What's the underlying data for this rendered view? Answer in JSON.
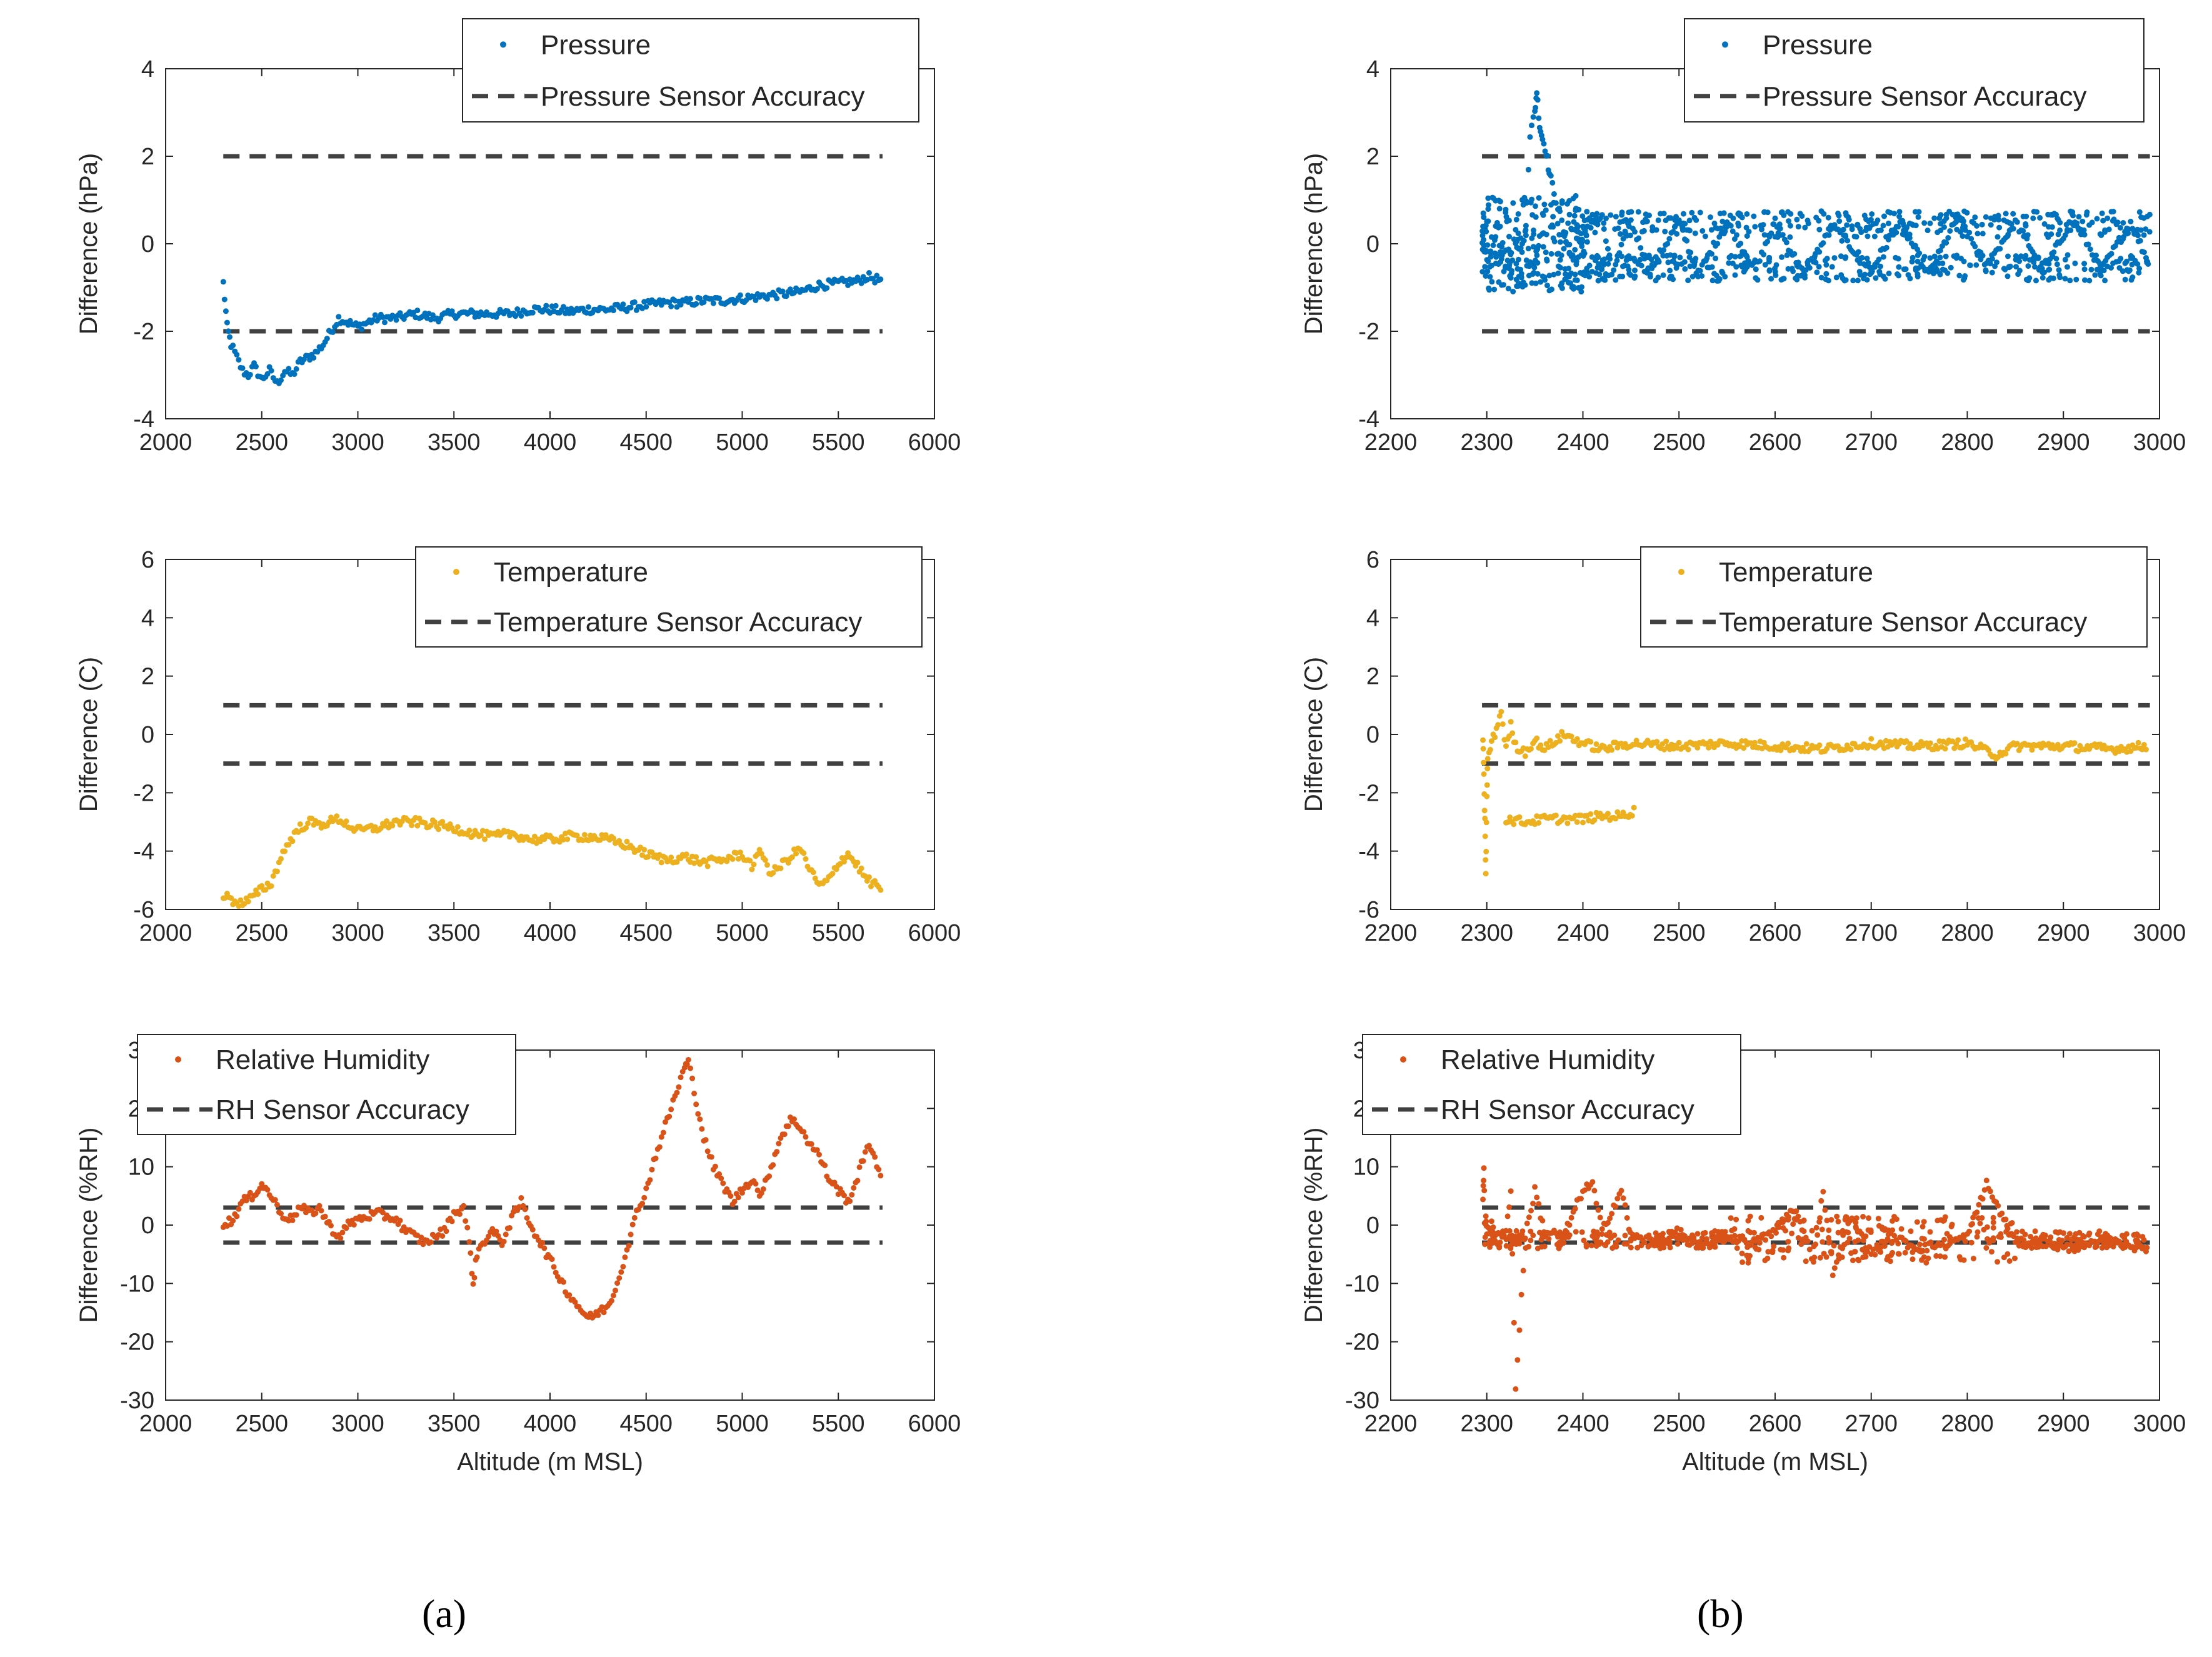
{
  "panel_labels": [
    "(a)",
    "(b)"
  ],
  "colors": {
    "pressure": "#0072BD",
    "temperature": "#EDB120",
    "humidity": "#D95319",
    "accuracy": "#404040"
  },
  "chart_data": [
    {
      "id": "a-pressure",
      "type": "scatter",
      "ylabel": "Difference (hPa)",
      "xlabel": "",
      "xlim": [
        2000,
        6000
      ],
      "xticks": [
        2000,
        2500,
        3000,
        3500,
        4000,
        4500,
        5000,
        5500,
        6000
      ],
      "ylim": [
        -4,
        4
      ],
      "yticks": [
        -4,
        -2,
        0,
        2,
        4
      ],
      "legend": {
        "placement": "top-center",
        "entries": [
          "Pressure",
          "Pressure Sensor Accuracy"
        ]
      },
      "accuracy_lines": [
        2,
        -2
      ],
      "line_x": [
        2300,
        5730
      ],
      "color": "pressure",
      "series_points": [
        [
          2300,
          -0.9
        ],
        [
          2320,
          -1.9
        ],
        [
          2340,
          -2.3
        ],
        [
          2370,
          -2.6
        ],
        [
          2400,
          -2.9
        ],
        [
          2430,
          -3.0
        ],
        [
          2460,
          -2.8
        ],
        [
          2500,
          -3.1
        ],
        [
          2540,
          -2.9
        ],
        [
          2580,
          -3.2
        ],
        [
          2620,
          -2.9
        ],
        [
          2660,
          -3.0
        ],
        [
          2700,
          -2.7
        ],
        [
          2740,
          -2.6
        ],
        [
          2780,
          -2.5
        ],
        [
          2820,
          -2.3
        ],
        [
          2860,
          -2.0
        ],
        [
          2900,
          -1.7
        ],
        [
          2950,
          -1.8
        ],
        [
          3000,
          -1.9
        ],
        [
          3100,
          -1.7
        ],
        [
          3200,
          -1.7
        ],
        [
          3300,
          -1.6
        ],
        [
          3400,
          -1.7
        ],
        [
          3500,
          -1.6
        ],
        [
          3600,
          -1.6
        ],
        [
          3700,
          -1.6
        ],
        [
          3800,
          -1.6
        ],
        [
          3900,
          -1.5
        ],
        [
          4000,
          -1.5
        ],
        [
          4100,
          -1.55
        ],
        [
          4200,
          -1.5
        ],
        [
          4300,
          -1.5
        ],
        [
          4400,
          -1.45
        ],
        [
          4500,
          -1.4
        ],
        [
          4600,
          -1.35
        ],
        [
          4700,
          -1.35
        ],
        [
          4800,
          -1.3
        ],
        [
          4900,
          -1.3
        ],
        [
          5000,
          -1.25
        ],
        [
          5100,
          -1.2
        ],
        [
          5200,
          -1.15
        ],
        [
          5300,
          -1.1
        ],
        [
          5400,
          -0.95
        ],
        [
          5500,
          -0.9
        ],
        [
          5600,
          -0.85
        ],
        [
          5650,
          -0.75
        ],
        [
          5730,
          -0.85
        ]
      ]
    },
    {
      "id": "b-pressure",
      "type": "scatter",
      "ylabel": "Difference (hPa)",
      "xlabel": "",
      "xlim": [
        2200,
        3000
      ],
      "xticks": [
        2200,
        2300,
        2400,
        2500,
        2600,
        2700,
        2800,
        2900,
        3000
      ],
      "ylim": [
        -4,
        4
      ],
      "yticks": [
        -4,
        -2,
        0,
        2,
        4
      ],
      "legend": {
        "placement": "top-center",
        "entries": [
          "Pressure",
          "Pressure Sensor Accuracy"
        ]
      },
      "accuracy_lines": [
        2,
        -2
      ],
      "line_x": [
        2295,
        2990
      ],
      "color": "pressure",
      "series_points": [
        [
          2296,
          0.3
        ],
        [
          2298,
          -0.5
        ],
        [
          2300,
          0.6
        ],
        [
          2302,
          -1.0
        ],
        [
          2305,
          0.2
        ],
        [
          2310,
          -0.3
        ],
        [
          2320,
          -0.1
        ],
        [
          2325,
          -0.7
        ],
        [
          2330,
          0.4
        ],
        [
          2335,
          -0.5
        ],
        [
          2340,
          0.3
        ],
        [
          2345,
          2.5
        ],
        [
          2350,
          3.0
        ],
        [
          2352,
          3.5
        ],
        [
          2355,
          2.7
        ],
        [
          2358,
          2.4
        ],
        [
          2362,
          2.1
        ],
        [
          2365,
          1.6
        ],
        [
          2370,
          1.2
        ],
        [
          2380,
          0.3
        ],
        [
          2390,
          -0.4
        ],
        [
          2395,
          0.4
        ],
        [
          2400,
          -0.6
        ],
        [
          2405,
          0.5
        ],
        [
          2420,
          0.6
        ],
        [
          2430,
          -0.7
        ],
        [
          2450,
          0.5
        ],
        [
          2470,
          -0.6
        ],
        [
          2500,
          0.5
        ],
        [
          2520,
          -0.7
        ],
        [
          2550,
          0.5
        ],
        [
          2580,
          -0.6
        ],
        [
          2600,
          0.5
        ],
        [
          2630,
          -0.7
        ],
        [
          2660,
          0.4
        ],
        [
          2700,
          -0.6
        ],
        [
          2730,
          0.5
        ],
        [
          2760,
          -0.7
        ],
        [
          2790,
          0.6
        ],
        [
          2820,
          -0.5
        ],
        [
          2850,
          0.5
        ],
        [
          2880,
          -0.6
        ],
        [
          2910,
          0.6
        ],
        [
          2940,
          -0.6
        ],
        [
          2970,
          0.5
        ],
        [
          2988,
          -0.4
        ]
      ]
    },
    {
      "id": "a-temperature",
      "type": "scatter",
      "ylabel": "Difference (C)",
      "xlabel": "",
      "xlim": [
        2000,
        6000
      ],
      "xticks": [
        2000,
        2500,
        3000,
        3500,
        4000,
        4500,
        5000,
        5500,
        6000
      ],
      "ylim": [
        -6,
        6
      ],
      "yticks": [
        -6,
        -4,
        -2,
        0,
        2,
        4,
        6
      ],
      "legend": {
        "placement": "top-center",
        "entries": [
          "Temperature",
          "Temperature Sensor Accuracy"
        ]
      },
      "accuracy_lines": [
        1,
        -1
      ],
      "line_x": [
        2300,
        5730
      ],
      "color": "temperature",
      "series_points": [
        [
          2300,
          -5.5
        ],
        [
          2350,
          -5.7
        ],
        [
          2400,
          -5.8
        ],
        [
          2450,
          -5.6
        ],
        [
          2500,
          -5.3
        ],
        [
          2550,
          -5.1
        ],
        [
          2600,
          -4.2
        ],
        [
          2650,
          -3.6
        ],
        [
          2700,
          -3.2
        ],
        [
          2750,
          -3.0
        ],
        [
          2800,
          -3.1
        ],
        [
          2850,
          -3.0
        ],
        [
          2900,
          -2.9
        ],
        [
          2950,
          -3.1
        ],
        [
          3000,
          -3.3
        ],
        [
          3100,
          -3.2
        ],
        [
          3200,
          -3.0
        ],
        [
          3300,
          -3.0
        ],
        [
          3400,
          -3.1
        ],
        [
          3500,
          -3.2
        ],
        [
          3600,
          -3.4
        ],
        [
          3700,
          -3.5
        ],
        [
          3800,
          -3.4
        ],
        [
          3900,
          -3.6
        ],
        [
          4000,
          -3.6
        ],
        [
          4100,
          -3.5
        ],
        [
          4200,
          -3.5
        ],
        [
          4300,
          -3.6
        ],
        [
          4400,
          -3.8
        ],
        [
          4500,
          -4.1
        ],
        [
          4600,
          -4.3
        ],
        [
          4700,
          -4.2
        ],
        [
          4800,
          -4.4
        ],
        [
          4900,
          -4.3
        ],
        [
          5000,
          -4.1
        ],
        [
          5050,
          -4.5
        ],
        [
          5100,
          -4.0
        ],
        [
          5150,
          -4.8
        ],
        [
          5200,
          -4.5
        ],
        [
          5300,
          -3.9
        ],
        [
          5350,
          -4.6
        ],
        [
          5400,
          -5.2
        ],
        [
          5450,
          -5.0
        ],
        [
          5500,
          -4.4
        ],
        [
          5550,
          -4.1
        ],
        [
          5600,
          -4.5
        ],
        [
          5650,
          -5.0
        ],
        [
          5730,
          -5.3
        ]
      ]
    },
    {
      "id": "b-temperature",
      "type": "scatter",
      "ylabel": "Difference (C)",
      "xlabel": "",
      "xlim": [
        2200,
        3000
      ],
      "xticks": [
        2200,
        2300,
        2400,
        2500,
        2600,
        2700,
        2800,
        2900,
        3000
      ],
      "ylim": [
        -6,
        6
      ],
      "yticks": [
        -6,
        -4,
        -2,
        0,
        2,
        4,
        6
      ],
      "legend": {
        "placement": "top-center",
        "entries": [
          "Temperature",
          "Temperature Sensor Accuracy"
        ]
      },
      "accuracy_lines": [
        1,
        -1
      ],
      "line_x": [
        2295,
        2990
      ],
      "color": "temperature",
      "series_points": [
        [
          2296,
          -0.2
        ],
        [
          2297,
          -1.5
        ],
        [
          2298,
          -3.0
        ],
        [
          2299,
          -4.8
        ],
        [
          2300,
          -2.2
        ],
        [
          2301,
          -0.8
        ],
        [
          2305,
          -0.3
        ],
        [
          2310,
          0.2
        ],
        [
          2315,
          0.8
        ],
        [
          2320,
          -0.5
        ],
        [
          2325,
          0.3
        ],
        [
          2330,
          -0.4
        ],
        [
          2340,
          -0.6
        ],
        [
          2350,
          -0.2
        ],
        [
          2360,
          -0.5
        ],
        [
          2380,
          0.0
        ],
        [
          2400,
          -0.3
        ],
        [
          2420,
          -0.5
        ],
        [
          2450,
          -0.3
        ],
        [
          2500,
          -0.4
        ],
        [
          2550,
          -0.3
        ],
        [
          2600,
          -0.4
        ],
        [
          2650,
          -0.5
        ],
        [
          2700,
          -0.3
        ],
        [
          2750,
          -0.4
        ],
        [
          2800,
          -0.3
        ],
        [
          2830,
          -0.7
        ],
        [
          2850,
          -0.4
        ],
        [
          2900,
          -0.4
        ],
        [
          2950,
          -0.5
        ],
        [
          2988,
          -0.4
        ],
        [
          2320,
          -2.9
        ],
        [
          2340,
          -3.0
        ],
        [
          2360,
          -2.9
        ],
        [
          2380,
          -2.9
        ],
        [
          2400,
          -2.9
        ],
        [
          2420,
          -2.8
        ],
        [
          2440,
          -2.8
        ],
        [
          2455,
          -2.6
        ]
      ]
    },
    {
      "id": "a-humidity",
      "type": "scatter",
      "ylabel": "Difference (%RH)",
      "xlabel": "Altitude (m MSL)",
      "xlim": [
        2000,
        6000
      ],
      "xticks": [
        2000,
        2500,
        3000,
        3500,
        4000,
        4500,
        5000,
        5500,
        6000
      ],
      "ylim": [
        -30,
        30
      ],
      "yticks": [
        -30,
        -20,
        -10,
        0,
        10,
        20,
        30
      ],
      "legend": {
        "placement": "top-left",
        "entries": [
          "Relative Humidity",
          "RH Sensor Accuracy"
        ]
      },
      "accuracy_lines": [
        3,
        -3
      ],
      "line_x": [
        2300,
        5730
      ],
      "color": "humidity",
      "series_points": [
        [
          2300,
          0
        ],
        [
          2350,
          1
        ],
        [
          2400,
          4
        ],
        [
          2450,
          5
        ],
        [
          2500,
          7
        ],
        [
          2550,
          5
        ],
        [
          2600,
          2
        ],
        [
          2650,
          1
        ],
        [
          2700,
          3
        ],
        [
          2750,
          2
        ],
        [
          2800,
          3
        ],
        [
          2850,
          0
        ],
        [
          2900,
          -2
        ],
        [
          2950,
          0
        ],
        [
          3000,
          1
        ],
        [
          3100,
          2
        ],
        [
          3200,
          1
        ],
        [
          3250,
          -1
        ],
        [
          3300,
          -2
        ],
        [
          3350,
          -3
        ],
        [
          3400,
          -2
        ],
        [
          3450,
          -1
        ],
        [
          3500,
          2
        ],
        [
          3550,
          3
        ],
        [
          3580,
          -3
        ],
        [
          3600,
          -10
        ],
        [
          3620,
          -5
        ],
        [
          3650,
          -3
        ],
        [
          3700,
          -1
        ],
        [
          3750,
          -3
        ],
        [
          3800,
          1
        ],
        [
          3850,
          4
        ],
        [
          3900,
          0
        ],
        [
          3950,
          -3
        ],
        [
          4000,
          -6
        ],
        [
          4050,
          -9
        ],
        [
          4100,
          -12
        ],
        [
          4150,
          -14
        ],
        [
          4200,
          -16
        ],
        [
          4250,
          -15
        ],
        [
          4300,
          -14
        ],
        [
          4350,
          -10
        ],
        [
          4400,
          -4
        ],
        [
          4450,
          2
        ],
        [
          4500,
          6
        ],
        [
          4550,
          12
        ],
        [
          4600,
          17
        ],
        [
          4650,
          22
        ],
        [
          4700,
          27
        ],
        [
          4720,
          28
        ],
        [
          4750,
          23
        ],
        [
          4800,
          15
        ],
        [
          4850,
          10
        ],
        [
          4900,
          7
        ],
        [
          4950,
          4
        ],
        [
          5000,
          6
        ],
        [
          5050,
          8
        ],
        [
          5100,
          5
        ],
        [
          5150,
          10
        ],
        [
          5200,
          15
        ],
        [
          5250,
          18
        ],
        [
          5300,
          17
        ],
        [
          5350,
          14
        ],
        [
          5400,
          12
        ],
        [
          5450,
          8
        ],
        [
          5500,
          6
        ],
        [
          5550,
          4
        ],
        [
          5600,
          8
        ],
        [
          5650,
          14
        ],
        [
          5730,
          8
        ]
      ]
    },
    {
      "id": "b-humidity",
      "type": "scatter",
      "ylabel": "Difference (%RH)",
      "xlabel": "Altitude (m MSL)",
      "xlim": [
        2200,
        3000
      ],
      "xticks": [
        2200,
        2300,
        2400,
        2500,
        2600,
        2700,
        2800,
        2900,
        3000
      ],
      "ylim": [
        -30,
        30
      ],
      "yticks": [
        -30,
        -20,
        -10,
        0,
        10,
        20,
        30
      ],
      "legend": {
        "placement": "top-left",
        "entries": [
          "Relative Humidity",
          "RH Sensor Accuracy"
        ]
      },
      "accuracy_lines": [
        3,
        -3
      ],
      "line_x": [
        2295,
        2990
      ],
      "color": "humidity",
      "series_points": [
        [
          2296,
          5
        ],
        [
          2297,
          10
        ],
        [
          2298,
          -4
        ],
        [
          2299,
          2
        ],
        [
          2300,
          -1
        ],
        [
          2305,
          0
        ],
        [
          2310,
          -2
        ],
        [
          2320,
          -1
        ],
        [
          2325,
          6
        ],
        [
          2330,
          -28
        ],
        [
          2340,
          -2
        ],
        [
          2350,
          6
        ],
        [
          2360,
          -1
        ],
        [
          2380,
          -2
        ],
        [
          2400,
          6
        ],
        [
          2410,
          7
        ],
        [
          2420,
          -1
        ],
        [
          2440,
          6
        ],
        [
          2450,
          -2
        ],
        [
          2480,
          -3
        ],
        [
          2500,
          -1
        ],
        [
          2520,
          -4
        ],
        [
          2550,
          -2
        ],
        [
          2580,
          -3
        ],
        [
          2600,
          -1
        ],
        [
          2620,
          3
        ],
        [
          2640,
          -6
        ],
        [
          2650,
          6
        ],
        [
          2660,
          -8
        ],
        [
          2680,
          1
        ],
        [
          2700,
          -5
        ],
        [
          2720,
          -2
        ],
        [
          2750,
          -4
        ],
        [
          2780,
          -3
        ],
        [
          2800,
          -2
        ],
        [
          2820,
          7
        ],
        [
          2850,
          -3
        ],
        [
          2880,
          -3
        ],
        [
          2900,
          -4
        ],
        [
          2950,
          -3
        ],
        [
          2988,
          -4
        ]
      ]
    }
  ]
}
